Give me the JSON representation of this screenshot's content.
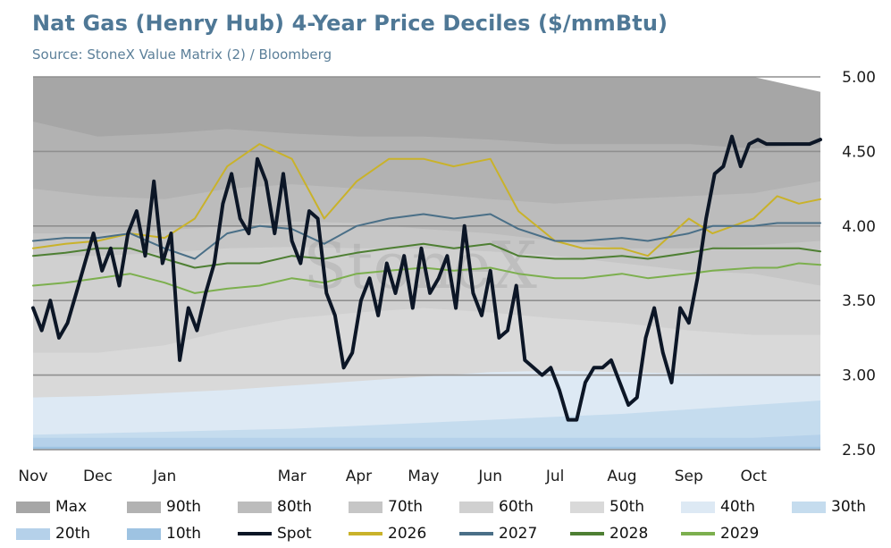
{
  "title": "Nat Gas (Henry Hub) 4-Year Price Deciles ($/mmBtu)",
  "subtitle": "Source: StoneX Value Matrix (2) / Bloomberg",
  "watermark": "StoneX",
  "chart_data": {
    "type": "area",
    "xlabel": "",
    "ylabel": "",
    "ylim": [
      2.5,
      5.0
    ],
    "x_ticks": [
      "Nov",
      "Dec",
      "Jan",
      "Mar",
      "Apr",
      "May",
      "Jun",
      "Jul",
      "Aug",
      "Sep",
      "Oct"
    ],
    "y_ticks": [
      "2.50",
      "3.00",
      "3.50",
      "4.00",
      "4.50",
      "5.00"
    ],
    "y_tick_values": [
      2.5,
      3.0,
      3.5,
      4.0,
      4.5,
      5.0
    ],
    "x_range": [
      0,
      365
    ],
    "x_tick_days": [
      0,
      30,
      61,
      120,
      151,
      181,
      212,
      242,
      273,
      304,
      334
    ],
    "grid": true,
    "legend_position": "bottom",
    "x": [
      0,
      30,
      61,
      90,
      120,
      151,
      181,
      212,
      242,
      273,
      304,
      334,
      365
    ],
    "bands": [
      {
        "name": "Max",
        "color": "#a6a6a6",
        "values": [
          5.0,
          5.0,
          5.0,
          5.0,
          5.0,
          5.0,
          5.0,
          5.0,
          5.0,
          5.0,
          5.0,
          5.0,
          4.9
        ]
      },
      {
        "name": "90th",
        "color": "#b2b2b2",
        "values": [
          4.7,
          4.6,
          4.62,
          4.65,
          4.62,
          4.6,
          4.6,
          4.58,
          4.55,
          4.55,
          4.55,
          4.52,
          4.55
        ]
      },
      {
        "name": "80th",
        "color": "#bcbcbc",
        "values": [
          4.25,
          4.2,
          4.18,
          4.25,
          4.28,
          4.25,
          4.22,
          4.18,
          4.15,
          4.18,
          4.2,
          4.22,
          4.3
        ]
      },
      {
        "name": "70th",
        "color": "#c6c6c6",
        "values": [
          3.95,
          3.95,
          3.97,
          4.0,
          4.03,
          4.02,
          3.98,
          3.95,
          3.9,
          3.85,
          3.85,
          3.87,
          3.9
        ]
      },
      {
        "name": "60th",
        "color": "#d0d0d0",
        "values": [
          3.8,
          3.8,
          3.82,
          3.85,
          3.86,
          3.85,
          3.85,
          3.83,
          3.8,
          3.75,
          3.7,
          3.68,
          3.6
        ]
      },
      {
        "name": "50th",
        "color": "#d9d9d9",
        "values": [
          3.15,
          3.15,
          3.2,
          3.3,
          3.38,
          3.42,
          3.45,
          3.42,
          3.38,
          3.35,
          3.3,
          3.27,
          3.27
        ]
      },
      {
        "name": "40th",
        "color": "#dde9f4",
        "values": [
          2.85,
          2.86,
          2.88,
          2.9,
          2.93,
          2.96,
          2.99,
          3.02,
          3.03,
          3.02,
          3.01,
          3.0,
          3.0
        ]
      },
      {
        "name": "30th",
        "color": "#c5dcee",
        "values": [
          2.6,
          2.61,
          2.62,
          2.63,
          2.64,
          2.66,
          2.68,
          2.7,
          2.72,
          2.74,
          2.77,
          2.8,
          2.83
        ]
      },
      {
        "name": "20th",
        "color": "#b5d1ea",
        "values": [
          2.58,
          2.58,
          2.58,
          2.58,
          2.58,
          2.58,
          2.58,
          2.58,
          2.58,
          2.58,
          2.58,
          2.58,
          2.6
        ]
      },
      {
        "name": "10th",
        "color": "#9ec3e2",
        "values": [
          2.52,
          2.52,
          2.52,
          2.52,
          2.52,
          2.52,
          2.52,
          2.52,
          2.52,
          2.52,
          2.52,
          2.52,
          2.52
        ]
      }
    ],
    "series": [
      {
        "name": "Spot",
        "color": "#0c1626",
        "width": 4,
        "x": [
          0,
          4,
          8,
          12,
          16,
          20,
          24,
          28,
          32,
          36,
          40,
          44,
          48,
          52,
          56,
          60,
          64,
          68,
          72,
          76,
          80,
          84,
          88,
          92,
          96,
          100,
          104,
          108,
          112,
          116,
          120,
          124,
          128,
          132,
          136,
          140,
          144,
          148,
          152,
          156,
          160,
          164,
          168,
          172,
          176,
          180,
          184,
          188,
          192,
          196,
          200,
          204,
          208,
          212,
          216,
          220,
          224,
          228,
          232,
          236,
          240,
          244,
          248,
          252,
          256,
          260,
          264,
          268,
          272,
          276,
          280,
          284,
          288,
          292,
          296,
          300,
          304,
          308,
          312,
          316,
          320,
          324,
          328,
          332,
          336,
          340,
          344,
          348,
          352,
          356,
          360,
          365
        ],
        "values": [
          3.45,
          3.3,
          3.5,
          3.25,
          3.35,
          3.55,
          3.75,
          3.95,
          3.7,
          3.85,
          3.6,
          3.95,
          4.1,
          3.8,
          4.3,
          3.75,
          3.95,
          3.1,
          3.45,
          3.3,
          3.55,
          3.75,
          4.15,
          4.35,
          4.05,
          3.95,
          4.45,
          4.3,
          3.95,
          4.35,
          3.9,
          3.75,
          4.1,
          4.05,
          3.55,
          3.4,
          3.05,
          3.15,
          3.5,
          3.65,
          3.4,
          3.75,
          3.55,
          3.8,
          3.45,
          3.85,
          3.55,
          3.65,
          3.8,
          3.45,
          4.0,
          3.55,
          3.4,
          3.7,
          3.25,
          3.3,
          3.6,
          3.1,
          3.05,
          3.0,
          3.05,
          2.9,
          2.7,
          2.7,
          2.95,
          3.05,
          3.05,
          3.1,
          2.95,
          2.8,
          2.85,
          3.25,
          3.45,
          3.15,
          2.95,
          3.45,
          3.35,
          3.65,
          4.05,
          4.35,
          4.4,
          4.6,
          4.4,
          4.55,
          4.58,
          4.55,
          4.55,
          4.55,
          4.55,
          4.55,
          4.55,
          4.58
        ]
      },
      {
        "name": "2026",
        "color": "#c9b22a",
        "width": 2,
        "x": [
          0,
          15,
          30,
          45,
          61,
          75,
          90,
          105,
          120,
          135,
          150,
          165,
          181,
          195,
          212,
          225,
          242,
          255,
          273,
          285,
          304,
          315,
          334,
          345,
          355,
          365
        ],
        "values": [
          3.85,
          3.88,
          3.9,
          3.95,
          3.92,
          4.05,
          4.4,
          4.55,
          4.45,
          4.05,
          4.3,
          4.45,
          4.45,
          4.4,
          4.45,
          4.1,
          3.9,
          3.85,
          3.85,
          3.8,
          4.05,
          3.95,
          4.05,
          4.2,
          4.15,
          4.18
        ]
      },
      {
        "name": "2027",
        "color": "#4a6f87",
        "width": 2,
        "x": [
          0,
          15,
          30,
          45,
          61,
          75,
          90,
          105,
          120,
          135,
          150,
          165,
          181,
          195,
          212,
          225,
          242,
          255,
          273,
          285,
          304,
          315,
          334,
          345,
          355,
          365
        ],
        "values": [
          3.9,
          3.92,
          3.92,
          3.95,
          3.85,
          3.78,
          3.95,
          4.0,
          3.98,
          3.88,
          4.0,
          4.05,
          4.08,
          4.05,
          4.08,
          3.98,
          3.9,
          3.9,
          3.92,
          3.9,
          3.95,
          4.0,
          4.0,
          4.02,
          4.02,
          4.02
        ]
      },
      {
        "name": "2028",
        "color": "#4e7f33",
        "width": 2,
        "x": [
          0,
          15,
          30,
          45,
          61,
          75,
          90,
          105,
          120,
          135,
          150,
          165,
          181,
          195,
          212,
          225,
          242,
          255,
          273,
          285,
          304,
          315,
          334,
          345,
          355,
          365
        ],
        "values": [
          3.8,
          3.82,
          3.85,
          3.85,
          3.78,
          3.72,
          3.75,
          3.75,
          3.8,
          3.78,
          3.82,
          3.85,
          3.88,
          3.85,
          3.88,
          3.8,
          3.78,
          3.78,
          3.8,
          3.78,
          3.82,
          3.85,
          3.85,
          3.85,
          3.85,
          3.83
        ]
      },
      {
        "name": "2029",
        "color": "#7caf4e",
        "width": 2,
        "x": [
          0,
          15,
          30,
          45,
          61,
          75,
          90,
          105,
          120,
          135,
          150,
          165,
          181,
          195,
          212,
          225,
          242,
          255,
          273,
          285,
          304,
          315,
          334,
          345,
          355,
          365
        ],
        "values": [
          3.6,
          3.62,
          3.65,
          3.68,
          3.62,
          3.55,
          3.58,
          3.6,
          3.65,
          3.62,
          3.68,
          3.7,
          3.72,
          3.7,
          3.72,
          3.68,
          3.65,
          3.65,
          3.68,
          3.65,
          3.68,
          3.7,
          3.72,
          3.72,
          3.75,
          3.74
        ]
      }
    ]
  },
  "legend": [
    {
      "label": "Max",
      "kind": "area",
      "color": "#a6a6a6"
    },
    {
      "label": "90th",
      "kind": "area",
      "color": "#b2b2b2"
    },
    {
      "label": "80th",
      "kind": "area",
      "color": "#bcbcbc"
    },
    {
      "label": "70th",
      "kind": "area",
      "color": "#c6c6c6"
    },
    {
      "label": "60th",
      "kind": "area",
      "color": "#d0d0d0"
    },
    {
      "label": "50th",
      "kind": "area",
      "color": "#d9d9d9"
    },
    {
      "label": "40th",
      "kind": "area",
      "color": "#dde9f4"
    },
    {
      "label": "30th",
      "kind": "area",
      "color": "#c5dcee"
    },
    {
      "label": "20th",
      "kind": "area",
      "color": "#b5d1ea"
    },
    {
      "label": "10th",
      "kind": "area",
      "color": "#9ec3e2"
    },
    {
      "label": "Spot",
      "kind": "line",
      "color": "#0c1626"
    },
    {
      "label": "2026",
      "kind": "line",
      "color": "#c9b22a"
    },
    {
      "label": "2027",
      "kind": "line",
      "color": "#4a6f87"
    },
    {
      "label": "2028",
      "kind": "line",
      "color": "#4e7f33"
    },
    {
      "label": "2029",
      "kind": "line",
      "color": "#7caf4e"
    }
  ]
}
